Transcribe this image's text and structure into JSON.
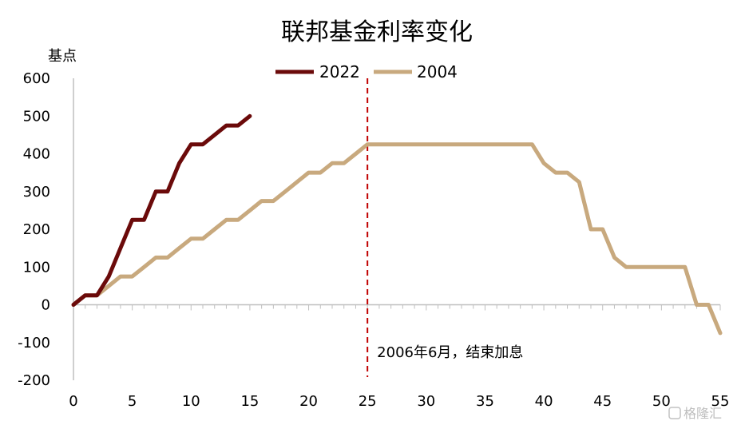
{
  "chart_data": {
    "type": "line",
    "title": "联邦基金利率变化",
    "ylabel": "基点",
    "xlabel": "",
    "xlim": [
      0,
      55
    ],
    "ylim": [
      -200,
      600
    ],
    "x_ticks": [
      0,
      5,
      10,
      15,
      20,
      25,
      30,
      35,
      40,
      45,
      50,
      55
    ],
    "y_ticks": [
      -200,
      -100,
      0,
      100,
      200,
      300,
      400,
      500,
      600
    ],
    "legend_position": "top-center",
    "series": [
      {
        "name": "2022",
        "color": "#6b0a0a",
        "x": [
          0,
          1,
          2,
          3,
          4,
          5,
          6,
          7,
          8,
          9,
          10,
          11,
          12,
          13,
          14,
          15
        ],
        "y": [
          0,
          25,
          25,
          75,
          150,
          225,
          225,
          300,
          300,
          375,
          425,
          425,
          450,
          475,
          475,
          500
        ]
      },
      {
        "name": "2004",
        "color": "#c8a97e",
        "x": [
          0,
          1,
          2,
          3,
          4,
          5,
          6,
          7,
          8,
          9,
          10,
          11,
          12,
          13,
          14,
          15,
          16,
          17,
          18,
          19,
          20,
          21,
          22,
          23,
          24,
          25,
          26,
          27,
          28,
          29,
          30,
          31,
          32,
          33,
          34,
          35,
          36,
          37,
          38,
          39,
          40,
          41,
          42,
          43,
          44,
          45,
          46,
          47,
          48,
          49,
          50,
          51,
          52,
          53,
          54,
          55
        ],
        "y": [
          0,
          25,
          25,
          50,
          75,
          75,
          100,
          125,
          125,
          150,
          175,
          175,
          200,
          225,
          225,
          250,
          275,
          275,
          300,
          325,
          350,
          350,
          375,
          375,
          400,
          425,
          425,
          425,
          425,
          425,
          425,
          425,
          425,
          425,
          425,
          425,
          425,
          425,
          425,
          425,
          375,
          350,
          350,
          325,
          200,
          200,
          125,
          100,
          100,
          100,
          100,
          100,
          100,
          0,
          0,
          -75
        ]
      }
    ],
    "vline": {
      "x": 25,
      "color": "#c00000",
      "label": "2006年6月，结束加息"
    }
  },
  "watermark": {
    "text": "格隆汇"
  }
}
